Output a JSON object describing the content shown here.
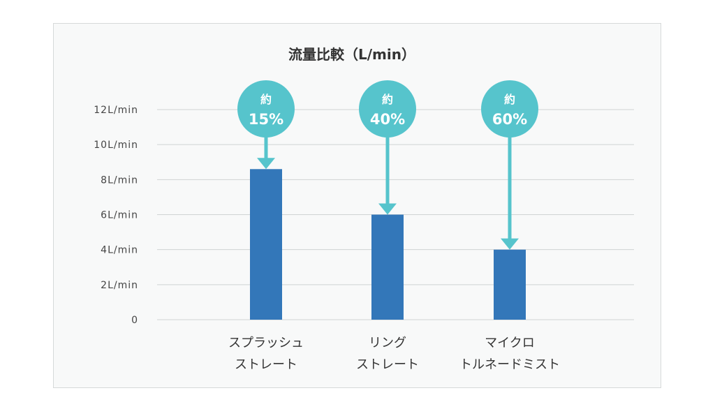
{
  "chart_data": {
    "type": "bar",
    "title": "流量比較（L/min）",
    "xlabel": "",
    "ylabel": "",
    "ylim": [
      0,
      12
    ],
    "grid": true,
    "y_ticks": [
      {
        "value": 0,
        "label": "0"
      },
      {
        "value": 2,
        "label": "2L/min"
      },
      {
        "value": 4,
        "label": "4L/min"
      },
      {
        "value": 6,
        "label": "6L/min"
      },
      {
        "value": 8,
        "label": "8L/min"
      },
      {
        "value": 10,
        "label": "10L/min"
      },
      {
        "value": 12,
        "label": "12L/min"
      }
    ],
    "categories": [
      {
        "line1": "スプラッシュ",
        "line2": "ストレート"
      },
      {
        "line1": "リング",
        "line2": "ストレート"
      },
      {
        "line1": "マイクロ",
        "line2": "トルネードミスト"
      }
    ],
    "values": [
      8.6,
      6,
      4
    ],
    "annotations": [
      {
        "prefix": "約",
        "text": "15%"
      },
      {
        "prefix": "約",
        "text": "40%"
      },
      {
        "prefix": "約",
        "text": "60%"
      }
    ],
    "colors": {
      "bar": "#3377b9",
      "annotation": "#56c4cc",
      "grid": "#cfd3d3"
    }
  }
}
